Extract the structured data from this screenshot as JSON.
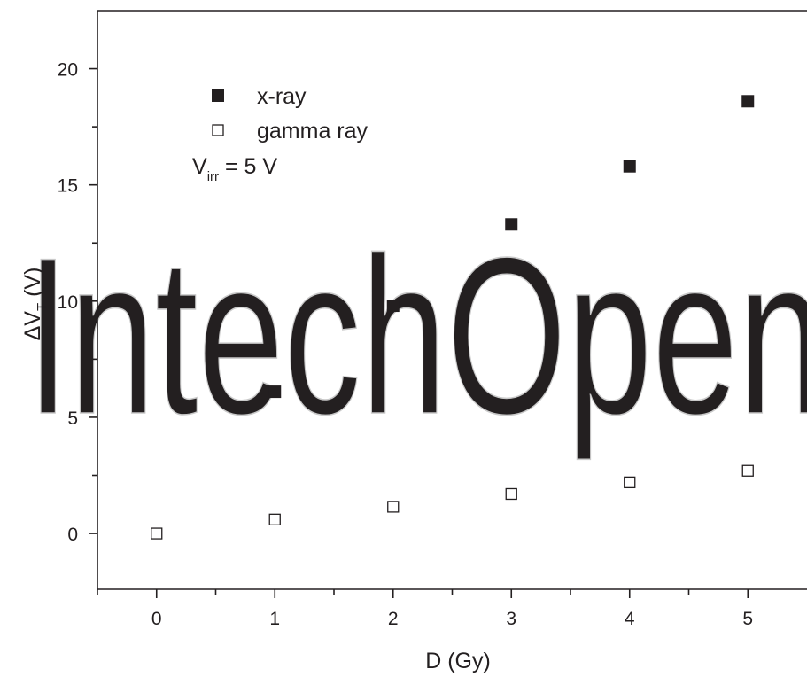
{
  "chart_data": {
    "type": "scatter",
    "xlabel": "D (Gy)",
    "ylabel": {
      "main": "ΔV",
      "sub": "T",
      "unit": " (V)"
    },
    "xlim": [
      -0.5,
      5.5
    ],
    "ylim": [
      -2.4,
      22.5
    ],
    "x_ticks": [
      0,
      1,
      2,
      3,
      4,
      5
    ],
    "y_ticks": [
      0,
      5,
      10,
      15,
      20
    ],
    "x_minor_ticks": [
      -0.5,
      0.5,
      1.5,
      2.5,
      3.5,
      4.5
    ],
    "y_minor_ticks": [
      2.5,
      7.5,
      12.5,
      17.5
    ],
    "grid": false,
    "legend_position": "top-left",
    "series": [
      {
        "name": "x-ray",
        "marker": "filled-square",
        "color": "#231f20",
        "points": [
          [
            1,
            6.1
          ],
          [
            2,
            9.8
          ],
          [
            3,
            13.3
          ],
          [
            4,
            15.8
          ],
          [
            5,
            18.6
          ]
        ]
      },
      {
        "name": "gamma ray",
        "marker": "open-square",
        "color": "#231f20",
        "points": [
          [
            0,
            0.0
          ],
          [
            1,
            0.6
          ],
          [
            2,
            1.15
          ],
          [
            3,
            1.7
          ],
          [
            4,
            2.2
          ],
          [
            5,
            2.7
          ]
        ]
      }
    ],
    "annotation": {
      "main": "V",
      "sub": "irr",
      "rest": " = 5 V"
    }
  },
  "watermark": {
    "text": "IntechOpen",
    "color": "#c9c9c9"
  }
}
